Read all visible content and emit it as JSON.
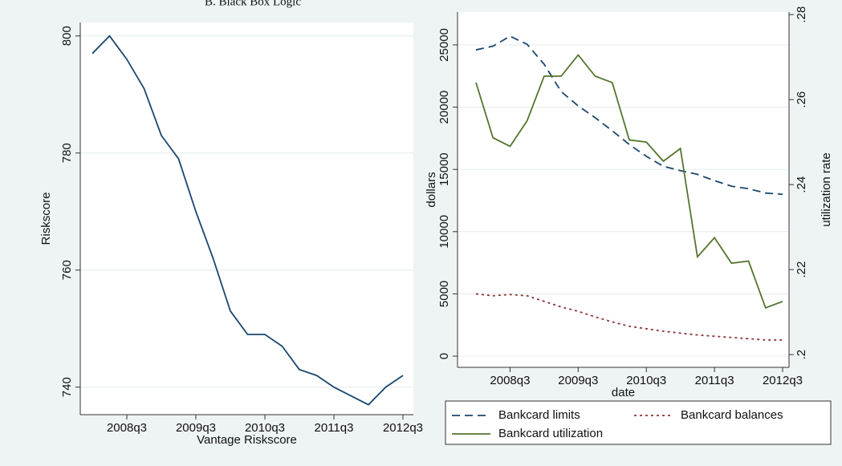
{
  "chart_data": [
    {
      "type": "line",
      "title": "B. Black Box Logic",
      "x_label": "Vantage Riskscore",
      "y_label": "Riskscore",
      "categories": [
        null,
        null,
        "2008q3",
        null,
        null,
        null,
        "2009q3",
        null,
        null,
        null,
        "2010q3",
        null,
        null,
        null,
        "2011q3",
        null,
        null,
        null,
        "2012q3"
      ],
      "values": [
        797,
        800,
        796,
        791,
        783,
        779,
        770,
        762,
        753,
        749,
        749,
        747,
        743,
        742,
        740,
        738.5,
        737,
        740,
        742
      ],
      "color": "#1a476f",
      "ylim": [
        735.3,
        802.3
      ],
      "yticks": [
        740,
        760,
        780,
        800
      ],
      "grid": true
    },
    {
      "type": "line",
      "x_label": "date",
      "y_label": "dollars",
      "y2_label": "utilization rate",
      "categories": [
        null,
        null,
        "2008q3",
        null,
        null,
        null,
        "2009q3",
        null,
        null,
        null,
        "2010q3",
        null,
        null,
        null,
        "2011q3",
        null,
        null,
        null,
        "2012q3"
      ],
      "series": [
        {
          "name": "Bankcard limits",
          "color": "#1a476f",
          "dash": "dashed",
          "values": [
            24600,
            24900,
            25700,
            25050,
            23450,
            21250,
            20100,
            19150,
            18100,
            17000,
            16050,
            15250,
            14900,
            14600,
            14100,
            13650,
            13450,
            13100,
            13000
          ]
        },
        {
          "name": "Bankcard balances",
          "color": "#90353b",
          "dash": "dotted",
          "values": [
            5000,
            4850,
            4950,
            4850,
            4400,
            3950,
            3600,
            3150,
            2750,
            2400,
            2200,
            2000,
            1850,
            1700,
            1600,
            1500,
            1400,
            1300,
            1300
          ]
        },
        {
          "name": "Bankcard utilization",
          "color": "#55752f",
          "dash": "solid",
          "axis": "y2",
          "values": [
            0.264,
            0.251,
            0.249,
            0.255,
            0.2655,
            0.2655,
            0.2705,
            0.2655,
            0.264,
            0.2505,
            0.25,
            0.2455,
            0.2485,
            0.223,
            0.2275,
            0.2215,
            0.222,
            0.211,
            0.2125
          ]
        }
      ],
      "ylim": [
        -900,
        27640
      ],
      "yticks": [
        0,
        5000,
        10000,
        15000,
        20000,
        25000
      ],
      "y2lim": [
        0.197,
        0.2806
      ],
      "y2ticks": [
        {
          "value": 0.2,
          "label": ".2"
        },
        {
          "value": 0.22,
          "label": ".22"
        },
        {
          "value": 0.24,
          "label": ".24"
        },
        {
          "value": 0.26,
          "label": ".26"
        },
        {
          "value": 0.28,
          "label": ".28"
        }
      ],
      "grid": true,
      "legend": "bottom"
    }
  ]
}
